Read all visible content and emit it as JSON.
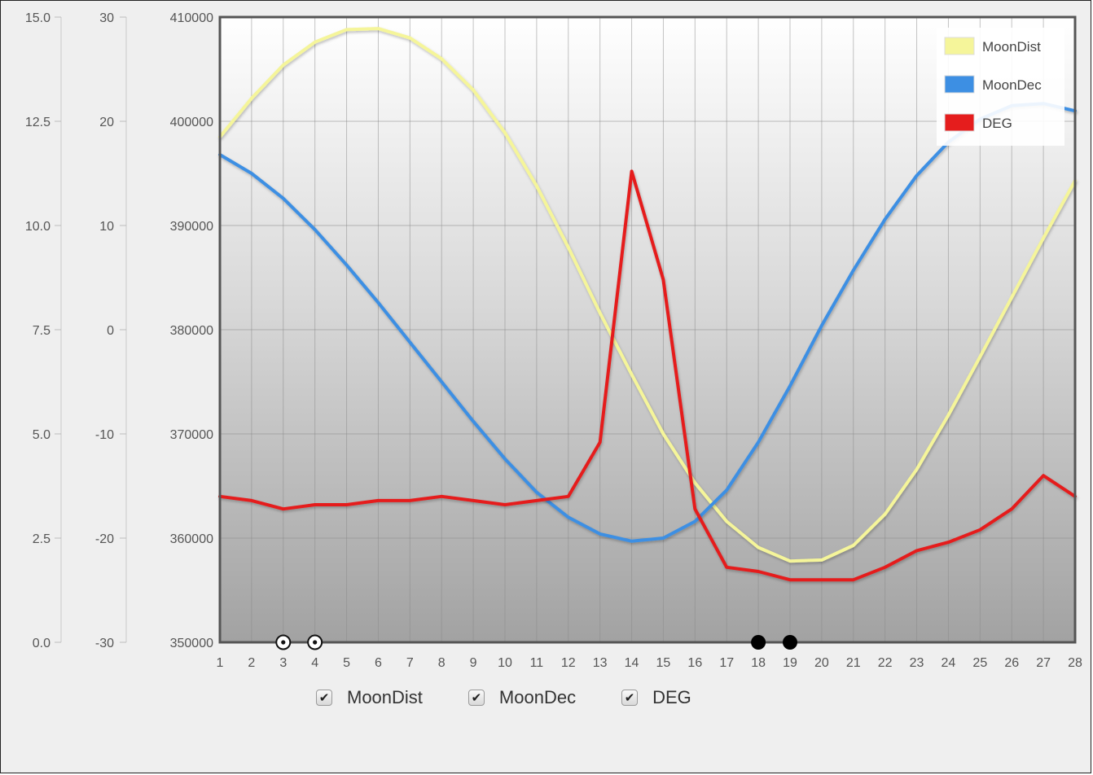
{
  "chart_data": {
    "type": "line",
    "x": [
      1,
      2,
      3,
      4,
      5,
      6,
      7,
      8,
      9,
      10,
      11,
      12,
      13,
      14,
      15,
      16,
      17,
      18,
      19,
      20,
      21,
      22,
      23,
      24,
      25,
      26,
      27,
      28
    ],
    "xlim": [
      1,
      28
    ],
    "grid": true,
    "legend_position": "top-right",
    "axes": [
      {
        "id": "deg_axis",
        "ylim": [
          0,
          15
        ],
        "ticks": [
          "0.0",
          "2.5",
          "5.0",
          "7.5",
          "10.0",
          "12.5",
          "15.0"
        ]
      },
      {
        "id": "dec_axis",
        "ylim": [
          -30,
          30
        ],
        "ticks": [
          "-30",
          "-20",
          "-10",
          "0",
          "10",
          "20",
          "30"
        ]
      },
      {
        "id": "dist_axis",
        "ylim": [
          350000,
          410000
        ],
        "ticks": [
          "350000",
          "360000",
          "370000",
          "380000",
          "390000",
          "400000",
          "410000"
        ]
      }
    ],
    "series": [
      {
        "name": "MoonDist",
        "color": "#f5f59a",
        "axis": "dist_axis",
        "values": [
          398500,
          402200,
          405400,
          407600,
          408800,
          408900,
          408000,
          406000,
          403000,
          398900,
          393800,
          387900,
          381600,
          375700,
          370000,
          365300,
          361600,
          359100,
          357800,
          357900,
          359300,
          362300,
          366600,
          371800,
          377400,
          383100,
          388800,
          394300
        ]
      },
      {
        "name": "MoonDec",
        "color": "#3d8fe3",
        "axis": "dec_axis",
        "values": [
          16.8,
          15.0,
          12.6,
          9.6,
          6.2,
          2.6,
          -1.2,
          -5.0,
          -8.8,
          -12.4,
          -15.6,
          -18.0,
          -19.6,
          -20.3,
          -20.0,
          -18.4,
          -15.4,
          -10.8,
          -5.4,
          0.4,
          5.7,
          10.6,
          14.8,
          18.0,
          20.2,
          21.5,
          21.7,
          21.0
        ]
      },
      {
        "name": "DEG",
        "color": "#e51d1d",
        "axis": "deg_axis",
        "values": [
          3.5,
          3.4,
          3.2,
          3.3,
          3.3,
          3.4,
          3.4,
          3.5,
          3.4,
          3.3,
          3.4,
          3.5,
          4.8,
          11.3,
          8.7,
          3.2,
          1.8,
          1.7,
          1.5,
          1.5,
          1.5,
          1.8,
          2.2,
          2.4,
          2.7,
          3.2,
          4.0,
          3.5
        ]
      }
    ],
    "markers": [
      {
        "x": 3,
        "kind": "open"
      },
      {
        "x": 4,
        "kind": "open"
      },
      {
        "x": 18,
        "kind": "filled"
      },
      {
        "x": 19,
        "kind": "filled"
      }
    ]
  },
  "toggles": [
    {
      "label": "MoonDist",
      "checked": true,
      "mark": "✔"
    },
    {
      "label": "MoonDec",
      "checked": true,
      "mark": "✔"
    },
    {
      "label": "DEG",
      "checked": true,
      "mark": "✔"
    }
  ]
}
